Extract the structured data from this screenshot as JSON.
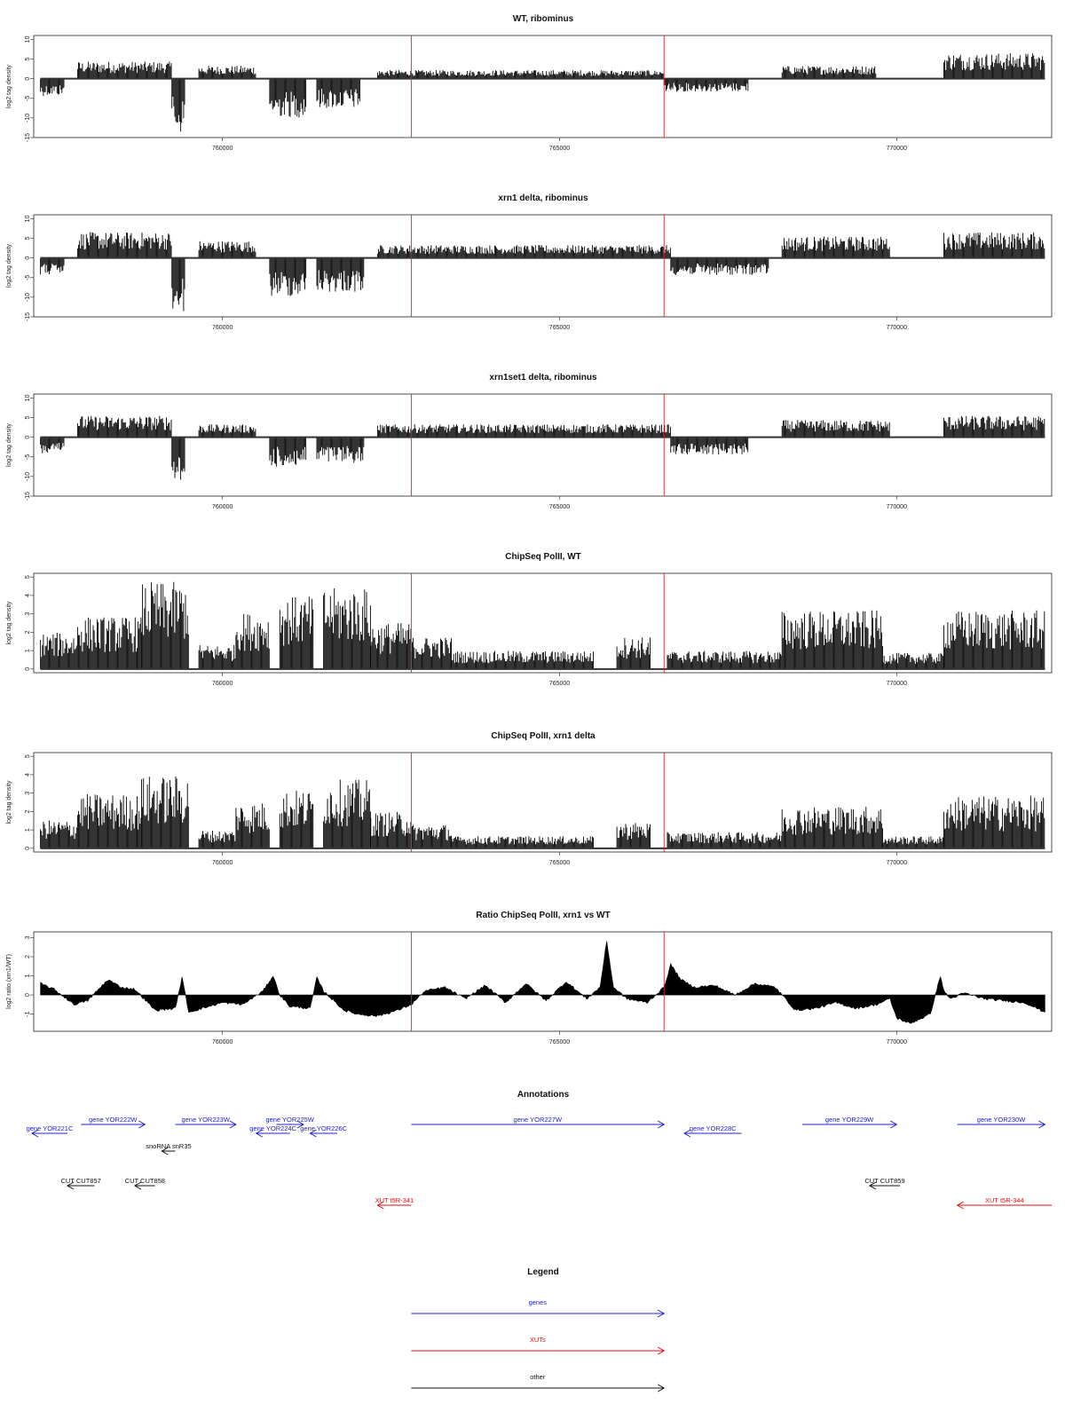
{
  "chart_data": {
    "type": "genome-browser",
    "x_range": [
      757200,
      772300
    ],
    "x_ticks": [
      760000,
      765000,
      770000
    ],
    "x_tick_labels": [
      "760000",
      "765000",
      "770000"
    ],
    "marker_positions": [
      762800,
      766550
    ],
    "marker_color": "#e02020",
    "panels": [
      {
        "id": "wt",
        "title": "WT, ribominus",
        "ylabel": "log2 tag density",
        "ylim": [
          -15,
          11
        ],
        "yticks": [
          -15,
          -10,
          -5,
          0,
          5,
          10
        ],
        "type": "bar",
        "regions": [
          {
            "start": 757300,
            "end": 757650,
            "level": -4
          },
          {
            "start": 757850,
            "end": 759250,
            "level": 4
          },
          {
            "start": 759250,
            "end": 759450,
            "level": -13
          },
          {
            "start": 759650,
            "end": 760500,
            "level": 3
          },
          {
            "start": 760700,
            "end": 761250,
            "level": -9
          },
          {
            "start": 761400,
            "end": 762050,
            "level": -7
          },
          {
            "start": 762300,
            "end": 766550,
            "level": 2
          },
          {
            "start": 766550,
            "end": 767800,
            "level": -3
          },
          {
            "start": 768300,
            "end": 769700,
            "level": 3
          },
          {
            "start": 770700,
            "end": 772200,
            "level": 6
          }
        ]
      },
      {
        "id": "xrn1",
        "title": "xrn1 delta, ribominus",
        "ylabel": "log2 tag density",
        "ylim": [
          -15,
          11
        ],
        "yticks": [
          -15,
          -10,
          -5,
          0,
          5,
          10
        ],
        "type": "bar",
        "regions": [
          {
            "start": 757300,
            "end": 757650,
            "level": -4
          },
          {
            "start": 757850,
            "end": 759250,
            "level": 6
          },
          {
            "start": 759250,
            "end": 759450,
            "level": -13
          },
          {
            "start": 759650,
            "end": 760500,
            "level": 4
          },
          {
            "start": 760700,
            "end": 761250,
            "level": -9
          },
          {
            "start": 761400,
            "end": 762100,
            "level": -8
          },
          {
            "start": 762300,
            "end": 766650,
            "level": 3
          },
          {
            "start": 766650,
            "end": 768100,
            "level": -4
          },
          {
            "start": 768300,
            "end": 769900,
            "level": 5
          },
          {
            "start": 770700,
            "end": 772200,
            "level": 6
          }
        ]
      },
      {
        "id": "xrn1set1",
        "title": "xrn1set1 delta, ribominus",
        "ylabel": "log2 tag density",
        "ylim": [
          -15,
          11
        ],
        "yticks": [
          -15,
          -10,
          -5,
          0,
          5,
          10
        ],
        "type": "bar",
        "regions": [
          {
            "start": 757300,
            "end": 757650,
            "level": -4
          },
          {
            "start": 757850,
            "end": 759250,
            "level": 5
          },
          {
            "start": 759250,
            "end": 759450,
            "level": -12
          },
          {
            "start": 759650,
            "end": 760500,
            "level": 3
          },
          {
            "start": 760700,
            "end": 761250,
            "level": -7
          },
          {
            "start": 761400,
            "end": 762100,
            "level": -6
          },
          {
            "start": 762300,
            "end": 766650,
            "level": 3
          },
          {
            "start": 766650,
            "end": 767800,
            "level": -4
          },
          {
            "start": 768300,
            "end": 769900,
            "level": 4
          },
          {
            "start": 770700,
            "end": 772200,
            "level": 5
          }
        ]
      },
      {
        "id": "chip_wt",
        "title": "ChipSeq PolII, WT",
        "ylabel": "log2 tag density",
        "ylim": [
          -0.2,
          5.2
        ],
        "yticks": [
          0,
          1,
          2,
          3,
          4,
          5
        ],
        "type": "bar",
        "regions": [
          {
            "start": 757300,
            "end": 757850,
            "level": 1.8
          },
          {
            "start": 757850,
            "end": 758800,
            "level": 2.6
          },
          {
            "start": 758800,
            "end": 759500,
            "level": 4.3
          },
          {
            "start": 759650,
            "end": 760200,
            "level": 1.2
          },
          {
            "start": 760200,
            "end": 760700,
            "level": 2.8
          },
          {
            "start": 760850,
            "end": 761350,
            "level": 3.6
          },
          {
            "start": 761500,
            "end": 762200,
            "level": 4.0
          },
          {
            "start": 762200,
            "end": 762800,
            "level": 2.3
          },
          {
            "start": 762800,
            "end": 763400,
            "level": 1.6
          },
          {
            "start": 763400,
            "end": 765500,
            "level": 0.9
          },
          {
            "start": 765850,
            "end": 766350,
            "level": 1.6
          },
          {
            "start": 766600,
            "end": 768300,
            "level": 0.9
          },
          {
            "start": 768300,
            "end": 769800,
            "level": 2.9
          },
          {
            "start": 769800,
            "end": 770700,
            "level": 0.8
          },
          {
            "start": 770700,
            "end": 772200,
            "level": 2.9
          }
        ]
      },
      {
        "id": "chip_xrn1",
        "title": "ChipSeq PolII, xrn1 delta",
        "ylabel": "log2 tag density",
        "ylim": [
          -0.2,
          5.2
        ],
        "yticks": [
          0,
          1,
          2,
          3,
          4,
          5
        ],
        "type": "bar",
        "regions": [
          {
            "start": 757300,
            "end": 757850,
            "level": 1.4
          },
          {
            "start": 757850,
            "end": 758800,
            "level": 2.7
          },
          {
            "start": 758800,
            "end": 759500,
            "level": 3.6
          },
          {
            "start": 759650,
            "end": 760200,
            "level": 0.9
          },
          {
            "start": 760200,
            "end": 760700,
            "level": 2.3
          },
          {
            "start": 760850,
            "end": 761350,
            "level": 2.9
          },
          {
            "start": 761500,
            "end": 762200,
            "level": 3.4
          },
          {
            "start": 762200,
            "end": 762800,
            "level": 1.8
          },
          {
            "start": 762800,
            "end": 763400,
            "level": 1.2
          },
          {
            "start": 763400,
            "end": 765500,
            "level": 0.6
          },
          {
            "start": 765850,
            "end": 766350,
            "level": 1.3
          },
          {
            "start": 766600,
            "end": 768300,
            "level": 0.8
          },
          {
            "start": 768300,
            "end": 769800,
            "level": 2.1
          },
          {
            "start": 769800,
            "end": 770700,
            "level": 0.6
          },
          {
            "start": 770700,
            "end": 772200,
            "level": 2.6
          }
        ]
      },
      {
        "id": "ratio",
        "title": "Ratio ChipSeq PolII, xrn1 vs WT",
        "ylabel": "log2 ratio (xrn1/WT)",
        "ylim": [
          -1.9,
          3.3
        ],
        "yticks": [
          -1,
          0,
          1,
          2,
          3
        ],
        "type": "area",
        "x": [
          757300,
          757500,
          757800,
          758000,
          758300,
          758500,
          758700,
          759000,
          759300,
          759400,
          759500,
          759800,
          760000,
          760300,
          760600,
          760750,
          760850,
          761000,
          761300,
          761400,
          761500,
          761800,
          762000,
          762300,
          762600,
          762800,
          763000,
          763300,
          763600,
          763900,
          764200,
          764500,
          764800,
          765100,
          765400,
          765600,
          765700,
          765800,
          766000,
          766300,
          766550,
          766650,
          766800,
          767000,
          767300,
          767600,
          767900,
          768200,
          768500,
          768800,
          769100,
          769400,
          769700,
          769900,
          770000,
          770200,
          770500,
          770650,
          770700,
          770800,
          771000,
          771300,
          771600,
          771900,
          772200
        ],
        "y": [
          0.6,
          0.3,
          -0.5,
          -0.3,
          0.8,
          0.4,
          0.3,
          -0.8,
          -0.7,
          0.9,
          -0.9,
          -0.6,
          -0.4,
          -0.5,
          0.2,
          1.0,
          0.0,
          -0.6,
          -0.7,
          0.9,
          0.2,
          -0.8,
          -1.0,
          -1.1,
          -0.8,
          -0.5,
          0.2,
          0.4,
          -0.2,
          0.5,
          -0.4,
          0.6,
          -0.3,
          0.7,
          -0.2,
          0.4,
          2.8,
          0.4,
          -0.2,
          -0.4,
          0.4,
          1.6,
          0.8,
          0.4,
          0.5,
          0.0,
          0.6,
          0.4,
          -0.8,
          -0.7,
          -0.4,
          -0.7,
          -0.5,
          -0.2,
          -1.2,
          -1.5,
          -1.0,
          1.0,
          0.2,
          -0.2,
          0.1,
          -0.2,
          -0.3,
          -0.4,
          -0.9
        ]
      }
    ],
    "annotations": {
      "title": "Annotations",
      "features": [
        {
          "label": "gene YOR221C",
          "start": 756700,
          "end": 757700,
          "strand": "-",
          "color": "#2222cc",
          "row": 1
        },
        {
          "label": "gene YOR222W",
          "start": 757900,
          "end": 758850,
          "strand": "+",
          "color": "#2222cc",
          "row": 0
        },
        {
          "label": "gene YOR223W",
          "start": 759300,
          "end": 760200,
          "strand": "+",
          "color": "#2222cc",
          "row": 0
        },
        {
          "label": "gene YOR224C",
          "start": 760500,
          "end": 761000,
          "strand": "-",
          "color": "#2222cc",
          "row": 1
        },
        {
          "label": "gene YOR225W",
          "start": 760800,
          "end": 761200,
          "strand": "+",
          "color": "#2222cc",
          "row": 0
        },
        {
          "label": "gene YOR226C",
          "start": 761300,
          "end": 761700,
          "strand": "-",
          "color": "#2222cc",
          "row": 1
        },
        {
          "label": "gene YOR227W",
          "start": 762800,
          "end": 766550,
          "strand": "+",
          "color": "#2222cc",
          "row": 0
        },
        {
          "label": "gene YOR228C",
          "start": 766850,
          "end": 767700,
          "strand": "-",
          "color": "#2222cc",
          "row": 1
        },
        {
          "label": "gene YOR229W",
          "start": 768600,
          "end": 770000,
          "strand": "+",
          "color": "#2222cc",
          "row": 0
        },
        {
          "label": "gene YOR230W",
          "start": 770900,
          "end": 772200,
          "strand": "+",
          "color": "#2222cc",
          "row": 0
        },
        {
          "label": "snoRNA snR35",
          "start": 759100,
          "end": 759300,
          "strand": "-",
          "color": "#111111",
          "row": 2
        },
        {
          "label": "CUT CUT857",
          "start": 757700,
          "end": 758100,
          "strand": "-",
          "color": "#111111",
          "row": 3
        },
        {
          "label": "CUT CUT858",
          "start": 758700,
          "end": 759000,
          "strand": "-",
          "color": "#111111",
          "row": 3
        },
        {
          "label": "CUT CUT859",
          "start": 769600,
          "end": 770050,
          "strand": "-",
          "color": "#111111",
          "row": 3
        },
        {
          "label": "XUT t5R-341",
          "start": 762300,
          "end": 762800,
          "strand": "-",
          "color": "#dd1111",
          "row": 4
        },
        {
          "label": "XUT t5R-344",
          "start": 770900,
          "end": 772300,
          "strand": "-",
          "color": "#dd1111",
          "row": 4
        }
      ]
    },
    "legend": {
      "title": "Legend",
      "entries": [
        {
          "label": "genes",
          "color": "#2222cc"
        },
        {
          "label": "XUTs",
          "color": "#dd1111"
        },
        {
          "label": "other",
          "color": "#111111"
        }
      ]
    }
  }
}
